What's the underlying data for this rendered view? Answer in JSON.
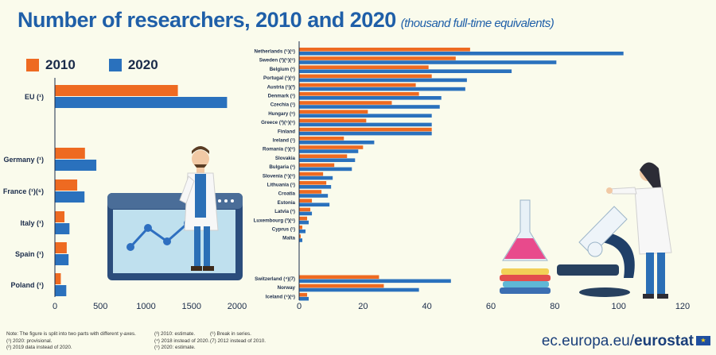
{
  "header": {
    "title": "Number of researchers, 2010 and 2020",
    "subtitle": "(thousand full-time equivalents)"
  },
  "legend": {
    "items": [
      {
        "label": "2010",
        "color": "#ee6a21"
      },
      {
        "label": "2020",
        "color": "#2a71bd"
      }
    ]
  },
  "chart_data": [
    {
      "type": "bar",
      "orientation": "horizontal",
      "categories": [
        "EU (¹)",
        "Germany (¹)",
        "France (¹)(⁶)",
        "Italy (¹)",
        "Spain (¹)",
        "Poland (¹)"
      ],
      "series": [
        {
          "name": "2010",
          "color": "#ee6a21",
          "values": [
            1350,
            330,
            245,
            105,
            130,
            65
          ]
        },
        {
          "name": "2020",
          "color": "#2a71bd",
          "values": [
            1890,
            455,
            325,
            160,
            150,
            125
          ]
        }
      ],
      "xlim": [
        0,
        2000
      ],
      "xticks": [
        "0",
        "500",
        "1000",
        "1500",
        "2000"
      ],
      "legend": "top-left"
    },
    {
      "type": "bar",
      "orientation": "horizontal",
      "categories": [
        "Netherlands (⁵)(⁶)",
        "Sweden (³)(⁵)(⁶)",
        "Belgium (¹)",
        "Portugal (¹)(⁶)",
        "Austria (¹)(³)",
        "Denmark (¹)",
        "Czechia (¹)",
        "Hungary (⁶)",
        "Greece (³)(⁵)(⁶)",
        "Finland",
        "Ireland (¹)",
        "Romania (¹)(⁶)",
        "Slovakia",
        "Bulgaria (¹)",
        "Slovenia (⁵)(⁶)",
        "Lithuania (¹)",
        "Croatia",
        "Estonia",
        "Latvia (¹)",
        "Luxembourg (³)(⁶)",
        "Cyprus (¹)",
        "Malta",
        "",
        "Switzerland (⁴)(7)",
        "Norway",
        "Iceland (⁴)(⁶)"
      ],
      "series": [
        {
          "name": "2010",
          "color": "#ee6a21",
          "values": [
            53.5,
            49,
            40.5,
            41.5,
            36.5,
            37.5,
            29,
            21.5,
            21,
            41.5,
            14,
            20,
            15,
            11,
            7.5,
            8.5,
            7,
            4,
            3.5,
            2.5,
            1,
            0.5,
            null,
            25,
            26.5,
            2.5
          ]
        },
        {
          "name": "2020",
          "color": "#2a71bd",
          "values": [
            101.5,
            80.5,
            66.5,
            52.5,
            52,
            44.5,
            44,
            41.5,
            41.5,
            41.5,
            23.5,
            18.5,
            17.5,
            16.5,
            10.5,
            10,
            9,
            9.5,
            4,
            3,
            2,
            1,
            null,
            47.5,
            37.5,
            3
          ]
        }
      ],
      "xlim": [
        0,
        120
      ],
      "xticks": [
        "0",
        "20",
        "40",
        "60",
        "80",
        "100",
        "120"
      ]
    }
  ],
  "footer": {
    "notes": [
      [
        "Note: The figure is split into two parts with different y-axes.",
        "(¹) 2020: provisional.",
        "(²) 2019 data instead of 2020."
      ],
      [
        "(³) 2010: estimate.",
        "(⁴) 2018 instead of 2020.",
        "(⁵) 2020: estimate."
      ],
      [
        "(⁶) Break in series.",
        "(7) 2012 instead of 2010."
      ]
    ],
    "brand_prefix": "ec.europa.eu/",
    "brand_name": "eurostat"
  }
}
